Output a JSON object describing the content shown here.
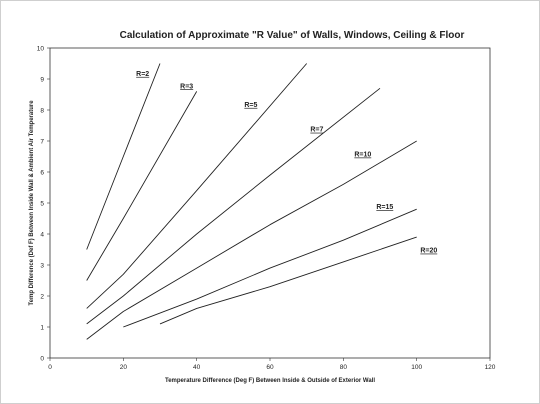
{
  "chart_data": {
    "type": "line",
    "title": "Calculation of Approximate \"R Value\" of Walls, Windows, Ceiling & Floor",
    "xlabel": "Temperature Difference (Deg F) Between Inside & Outside of Exterior Wall",
    "ylabel": "Temp Difference (Def F) Between Inside Wall & Ambient Air Temperature",
    "xlim": [
      0,
      120
    ],
    "ylim": [
      0,
      10
    ],
    "x_ticks": [
      "0",
      "20",
      "40",
      "60",
      "80",
      "100",
      "120"
    ],
    "y_ticks": [
      "0",
      "1",
      "2",
      "3",
      "4",
      "5",
      "6",
      "7",
      "8",
      "9",
      "10"
    ],
    "grid": false,
    "series": [
      {
        "name": "R=2",
        "x": [
          10,
          20,
          30
        ],
        "y": [
          3.5,
          6.5,
          9.5
        ]
      },
      {
        "name": "R=3",
        "x": [
          10,
          20,
          40
        ],
        "y": [
          2.5,
          4.5,
          8.6
        ]
      },
      {
        "name": "R=5",
        "x": [
          10,
          20,
          40,
          70
        ],
        "y": [
          1.6,
          2.7,
          5.4,
          9.5
        ]
      },
      {
        "name": "R=7",
        "x": [
          10,
          20,
          40,
          60,
          90
        ],
        "y": [
          1.1,
          2.0,
          4.0,
          5.9,
          8.7
        ]
      },
      {
        "name": "R=10",
        "x": [
          10,
          20,
          40,
          60,
          80,
          100
        ],
        "y": [
          0.6,
          1.5,
          2.9,
          4.3,
          5.6,
          7.0
        ]
      },
      {
        "name": "R=15",
        "x": [
          20,
          40,
          60,
          80,
          100
        ],
        "y": [
          1.0,
          1.9,
          2.9,
          3.8,
          4.8
        ]
      },
      {
        "name": "R=20",
        "x": [
          30,
          40,
          60,
          80,
          100
        ],
        "y": [
          1.1,
          1.6,
          2.3,
          3.1,
          3.9
        ]
      }
    ]
  }
}
